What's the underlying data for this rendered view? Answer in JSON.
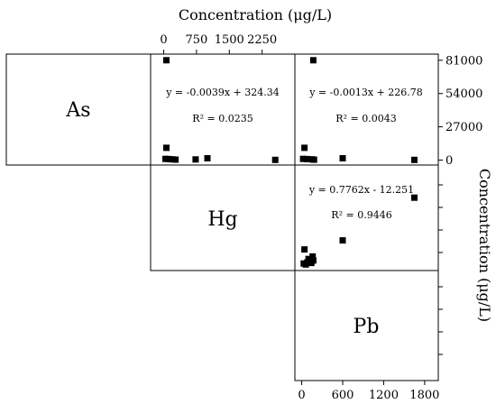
{
  "chart_data": {
    "type": "scatter",
    "top_axis_title": "Concentration (μg/L)",
    "right_axis_title": "Concentration (μg/L)",
    "variables": [
      "As",
      "Hg",
      "Pb"
    ],
    "top_ticks": [
      {
        "label": "0",
        "value": 0
      },
      {
        "label": "750",
        "value": 750
      },
      {
        "label": "1500",
        "value": 1500
      },
      {
        "label": "2250",
        "value": 2250
      }
    ],
    "bottom_ticks": [
      {
        "label": "0",
        "value": 0
      },
      {
        "label": "600",
        "value": 600
      },
      {
        "label": "1200",
        "value": 1200
      },
      {
        "label": "1800",
        "value": 1800
      }
    ],
    "right_ticks": [
      {
        "label": "81000",
        "value": 81000
      },
      {
        "label": "54000",
        "value": 54000
      },
      {
        "label": "27000",
        "value": 27000
      },
      {
        "label": "0",
        "value": 0
      }
    ],
    "panels": [
      {
        "id": "as-hg",
        "x_range": [
          -300,
          3000
        ],
        "y_range": [
          -4000,
          86000
        ],
        "equation": "y = -0.0039x + 324.34",
        "r2": "R² = 0.0235",
        "points": [
          {
            "x": 60,
            "y": 81000
          },
          {
            "x": 60,
            "y": 10000
          },
          {
            "x": 40,
            "y": 1000
          },
          {
            "x": 120,
            "y": 800
          },
          {
            "x": 200,
            "y": 600
          },
          {
            "x": 270,
            "y": 400
          },
          {
            "x": 730,
            "y": 500
          },
          {
            "x": 1000,
            "y": 1500
          },
          {
            "x": 2550,
            "y": 200
          }
        ]
      },
      {
        "id": "as-pb",
        "x_range": [
          -100,
          2000
        ],
        "y_range": [
          -4000,
          86000
        ],
        "equation": "y = -0.0013x + 226.78",
        "r2": "R² = 0.0043",
        "points": [
          {
            "x": 170,
            "y": 81000
          },
          {
            "x": 40,
            "y": 10000
          },
          {
            "x": 20,
            "y": 1000
          },
          {
            "x": 80,
            "y": 800
          },
          {
            "x": 150,
            "y": 600
          },
          {
            "x": 180,
            "y": 300
          },
          {
            "x": 600,
            "y": 1500
          },
          {
            "x": 1650,
            "y": 200
          }
        ]
      },
      {
        "id": "hg-pb",
        "x_range": [
          -100,
          2000
        ],
        "y_range": [
          -100,
          2000
        ],
        "equation": "y = 0.7762x - 12.251",
        "r2": "R² = 0.9446",
        "points": [
          {
            "x": 1650,
            "y": 1350
          },
          {
            "x": 600,
            "y": 500
          },
          {
            "x": 40,
            "y": 320
          },
          {
            "x": 100,
            "y": 130
          },
          {
            "x": 160,
            "y": 180
          },
          {
            "x": 170,
            "y": 100
          },
          {
            "x": 30,
            "y": 40
          },
          {
            "x": 80,
            "y": 60
          },
          {
            "x": 140,
            "y": 50
          },
          {
            "x": 60,
            "y": 20
          }
        ]
      }
    ]
  }
}
